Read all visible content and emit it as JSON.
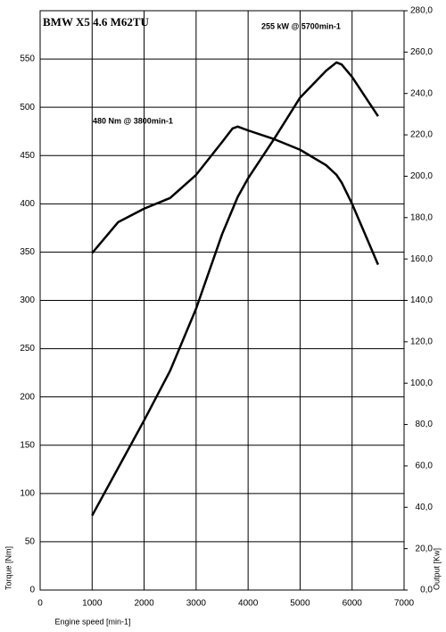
{
  "chart_data": {
    "type": "line",
    "title": "BMW X5 4.6 M62TU",
    "annotations": [
      "480 Nm @ 3800min-1",
      "255 kW @ 5700min-1"
    ],
    "xlabel": "Engine speed [min-1]",
    "ylabel": "Torque [Nm]",
    "y2label": "Output [Kw]",
    "x": [
      1000,
      1500,
      2000,
      2500,
      3000,
      3500,
      3700,
      3800,
      4000,
      4500,
      5000,
      5500,
      5700,
      5800,
      6000,
      6500
    ],
    "series": [
      {
        "color": "#000000",
        "values": [
          349,
          381,
          395,
          406,
          430,
          464,
          478,
          480,
          476,
          467,
          456,
          440,
          430,
          422,
          400,
          337
        ]
      },
      {
        "color": "#000000",
        "axis": "y2",
        "values": [
          36,
          59,
          82,
          106,
          136,
          172,
          184,
          190,
          199,
          218,
          238,
          251,
          255,
          254,
          248,
          229
        ]
      }
    ],
    "xlim": [
      0,
      7000
    ],
    "xticks": [
      0,
      1000,
      2000,
      3000,
      4000,
      5000,
      6000,
      7000
    ],
    "ylim": [
      0,
      600
    ],
    "yticks": [
      0,
      50,
      100,
      150,
      200,
      250,
      300,
      350,
      400,
      450,
      500,
      550
    ],
    "y2lim": [
      0,
      280
    ],
    "y2ticks": [
      {
        "value": 0,
        "label": "0,0"
      },
      {
        "value": 20,
        "label": "20,0"
      },
      {
        "value": 40,
        "label": "40,0"
      },
      {
        "value": 60,
        "label": "60,0"
      },
      {
        "value": 80,
        "label": "80,0"
      },
      {
        "value": 100,
        "label": "100,0"
      },
      {
        "value": 120,
        "label": "120,0"
      },
      {
        "value": 140,
        "label": "140,0"
      },
      {
        "value": 160,
        "label": "160,0"
      },
      {
        "value": 180,
        "label": "180,0"
      },
      {
        "value": 200,
        "label": "200,0"
      },
      {
        "value": 220,
        "label": "220,0"
      },
      {
        "value": 240,
        "label": "240,0"
      },
      {
        "value": 260,
        "label": "260,0"
      },
      {
        "value": 280,
        "label": "280,0"
      }
    ],
    "grid": true
  }
}
